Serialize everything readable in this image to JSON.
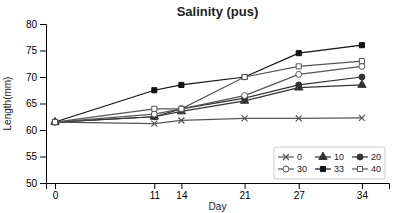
{
  "chart_data": {
    "type": "line",
    "title": "Salinity (pus)",
    "xlabel": "Day",
    "ylabel": "Length(mm)",
    "x": [
      0,
      11,
      14,
      21,
      27,
      34
    ],
    "xlim": [
      -1,
      37
    ],
    "xticks": [
      0,
      11,
      14,
      21,
      27,
      34
    ],
    "ylim": [
      50,
      80
    ],
    "yticks": [
      50,
      55,
      60,
      65,
      70,
      75,
      80
    ],
    "series": [
      {
        "name": "0",
        "color": "#555555",
        "marker": "x",
        "values": [
          61.5,
          61.2,
          61.8,
          62.2,
          62.2,
          62.3
        ]
      },
      {
        "name": "10",
        "color": "#333333",
        "marker": "triangle",
        "values": [
          61.5,
          62.5,
          63.5,
          65.5,
          68.0,
          68.5
        ]
      },
      {
        "name": "20",
        "color": "#333333",
        "marker": "circle",
        "values": [
          61.5,
          62.5,
          64.0,
          66.0,
          68.5,
          70.0
        ]
      },
      {
        "name": "30",
        "color": "#555555",
        "marker": "circle-open",
        "values": [
          61.5,
          63.0,
          64.0,
          66.5,
          70.5,
          72.0
        ]
      },
      {
        "name": "33",
        "color": "#111111",
        "marker": "square",
        "values": [
          61.5,
          67.5,
          68.5,
          70.0,
          74.5,
          76.0
        ]
      },
      {
        "name": "40",
        "color": "#555555",
        "marker": "square-open",
        "values": [
          61.5,
          64.0,
          64.0,
          70.0,
          72.0,
          73.0
        ]
      }
    ],
    "legend": "lower right",
    "grid": false
  }
}
